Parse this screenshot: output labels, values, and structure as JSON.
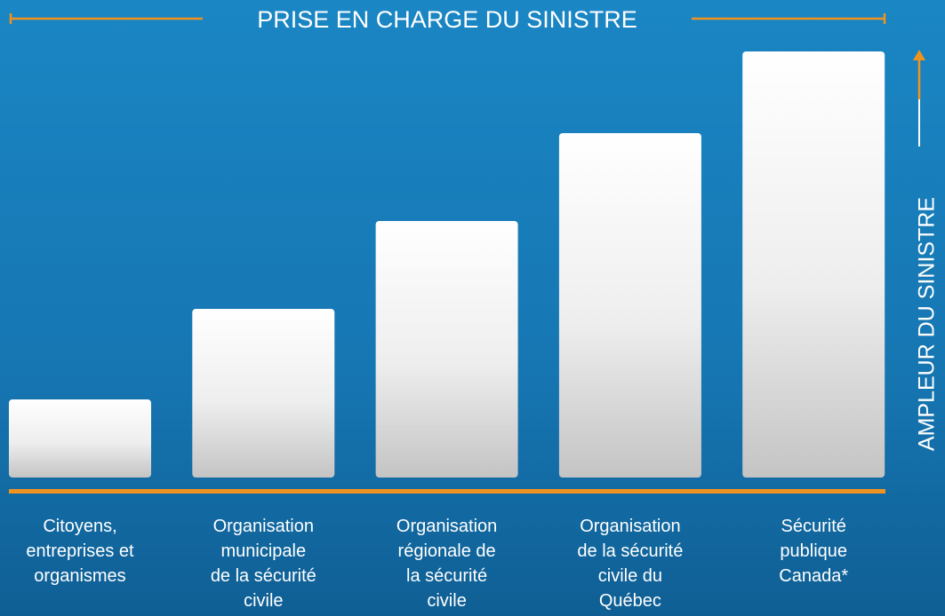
{
  "title": "PRISE EN CHARGE DU SINISTRE",
  "side_label": "AMPLEUR DU SINISTRE",
  "levels": [
    {
      "lines": [
        "Citoyens,",
        "entreprises et",
        "organismes"
      ]
    },
    {
      "lines": [
        "Organisation",
        "municipale",
        "de la sécurité",
        "civile"
      ]
    },
    {
      "lines": [
        "Organisation",
        "régionale de",
        "la sécurité",
        "civile"
      ]
    },
    {
      "lines": [
        "Organisation",
        "de la sécurité",
        "civile du",
        "Québec"
      ]
    },
    {
      "lines": [
        "Sécurité",
        "publique",
        "Canada*"
      ]
    }
  ]
}
